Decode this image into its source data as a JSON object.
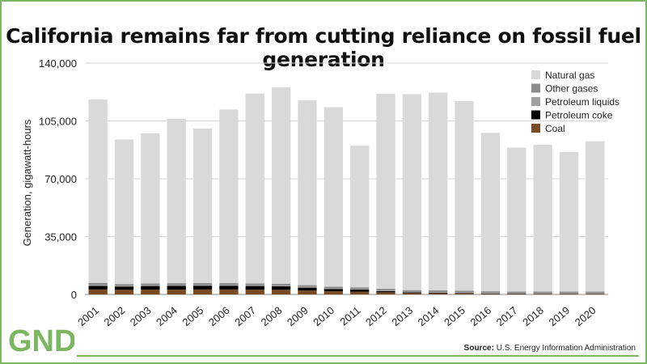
{
  "title": "California remains far from cutting reliance on fossil fuel generation",
  "source_label": "Source:",
  "source_text": "U.S. Energy Information Administration",
  "logo_text": "GND",
  "colors": {
    "frame": "#7bb661",
    "natural_gas": "#d9d9d9",
    "other_gases": "#8c8c8c",
    "petroleum_liquids": "#a0a0a0",
    "petroleum_coke": "#000000",
    "coal": "#7a4a22"
  },
  "chart_data": {
    "type": "bar",
    "stacked": true,
    "title": "California remains far from cutting reliance on fossil fuel generation",
    "xlabel": "",
    "ylabel": "Generation, gigawatt-hours",
    "ylim": [
      0,
      140000
    ],
    "yticks": [
      "0",
      "35,000",
      "70,000",
      "105,000",
      "140,000"
    ],
    "ytick_values": [
      0,
      35000,
      70000,
      105000,
      140000
    ],
    "grid": true,
    "legend_position": "top-right",
    "categories": [
      "2001",
      "2002",
      "2003",
      "2004",
      "2005",
      "2006",
      "2007",
      "2008",
      "2009",
      "2010",
      "2011",
      "2012",
      "2013",
      "2014",
      "2015",
      "2016",
      "2017",
      "2018",
      "2019",
      "2020"
    ],
    "series": [
      {
        "name": "Coal",
        "color": "#7a4a22",
        "values": [
          3000,
          2800,
          2900,
          2900,
          3000,
          3000,
          2900,
          2800,
          2400,
          1900,
          1600,
          1300,
          800,
          700,
          500,
          300,
          250,
          200,
          200,
          200
        ]
      },
      {
        "name": "Petroleum coke",
        "color": "#000000",
        "values": [
          2200,
          2000,
          2200,
          2300,
          2300,
          2300,
          2200,
          2100,
          1700,
          1400,
          1300,
          700,
          400,
          400,
          300,
          200,
          200,
          200,
          200,
          200
        ]
      },
      {
        "name": "Petroleum liquids",
        "color": "#a0a0a0",
        "values": [
          600,
          400,
          400,
          400,
          400,
          400,
          400,
          400,
          400,
          300,
          300,
          300,
          300,
          300,
          300,
          300,
          300,
          300,
          300,
          300
        ]
      },
      {
        "name": "Other gases",
        "color": "#8c8c8c",
        "values": [
          1200,
          1100,
          1200,
          1200,
          1200,
          1200,
          1200,
          1200,
          1100,
          1100,
          1100,
          1100,
          1100,
          1100,
          1100,
          1100,
          1000,
          1000,
          1000,
          1000
        ]
      },
      {
        "name": "Natural gas",
        "color": "#d9d9d9",
        "values": [
          111000,
          87500,
          90800,
          99500,
          93500,
          105000,
          114800,
          118800,
          111900,
          108600,
          85700,
          118000,
          118600,
          119600,
          114800,
          95900,
          87100,
          88900,
          84500,
          91000
        ]
      }
    ],
    "legend_order": [
      "Natural gas",
      "Other gases",
      "Petroleum liquids",
      "Petroleum coke",
      "Coal"
    ]
  }
}
